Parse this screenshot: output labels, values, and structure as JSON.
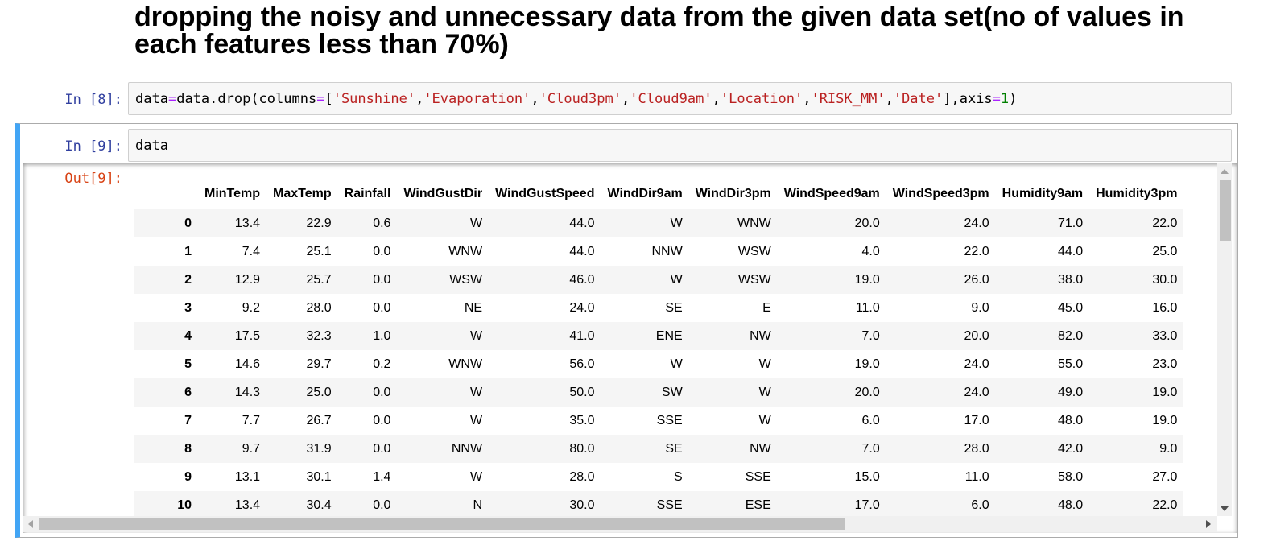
{
  "markdown": {
    "heading": "dropping the noisy and unnecessary data from the given data set(no of values in each features less than 70%)"
  },
  "cells": [
    {
      "prompt": "In [8]:",
      "code": [
        {
          "t": "data",
          "c": ""
        },
        {
          "t": "=",
          "c": "op"
        },
        {
          "t": "data.drop(columns",
          "c": ""
        },
        {
          "t": "=",
          "c": "op"
        },
        {
          "t": "[",
          "c": ""
        },
        {
          "t": "'Sunshine'",
          "c": "str"
        },
        {
          "t": ",",
          "c": ""
        },
        {
          "t": "'Evaporation'",
          "c": "str"
        },
        {
          "t": ",",
          "c": ""
        },
        {
          "t": "'Cloud3pm'",
          "c": "str"
        },
        {
          "t": ",",
          "c": ""
        },
        {
          "t": "'Cloud9am'",
          "c": "str"
        },
        {
          "t": ",",
          "c": ""
        },
        {
          "t": "'Location'",
          "c": "str"
        },
        {
          "t": ",",
          "c": ""
        },
        {
          "t": "'RISK_MM'",
          "c": "str"
        },
        {
          "t": ",",
          "c": ""
        },
        {
          "t": "'Date'",
          "c": "str"
        },
        {
          "t": "],axis",
          "c": ""
        },
        {
          "t": "=",
          "c": "op"
        },
        {
          "t": "1",
          "c": "num"
        },
        {
          "t": ")",
          "c": ""
        }
      ]
    },
    {
      "prompt": "In [9]:",
      "code_text": "data",
      "out_prompt": "Out[9]:"
    }
  ],
  "table": {
    "columns": [
      "MinTemp",
      "MaxTemp",
      "Rainfall",
      "WindGustDir",
      "WindGustSpeed",
      "WindDir9am",
      "WindDir3pm",
      "WindSpeed9am",
      "WindSpeed3pm",
      "Humidity9am",
      "Humidity3pm"
    ],
    "rows": [
      {
        "index": "0",
        "values": [
          "13.4",
          "22.9",
          "0.6",
          "W",
          "44.0",
          "W",
          "WNW",
          "20.0",
          "24.0",
          "71.0",
          "22.0"
        ]
      },
      {
        "index": "1",
        "values": [
          "7.4",
          "25.1",
          "0.0",
          "WNW",
          "44.0",
          "NNW",
          "WSW",
          "4.0",
          "22.0",
          "44.0",
          "25.0"
        ]
      },
      {
        "index": "2",
        "values": [
          "12.9",
          "25.7",
          "0.0",
          "WSW",
          "46.0",
          "W",
          "WSW",
          "19.0",
          "26.0",
          "38.0",
          "30.0"
        ]
      },
      {
        "index": "3",
        "values": [
          "9.2",
          "28.0",
          "0.0",
          "NE",
          "24.0",
          "SE",
          "E",
          "11.0",
          "9.0",
          "45.0",
          "16.0"
        ]
      },
      {
        "index": "4",
        "values": [
          "17.5",
          "32.3",
          "1.0",
          "W",
          "41.0",
          "ENE",
          "NW",
          "7.0",
          "20.0",
          "82.0",
          "33.0"
        ]
      },
      {
        "index": "5",
        "values": [
          "14.6",
          "29.7",
          "0.2",
          "WNW",
          "56.0",
          "W",
          "W",
          "19.0",
          "24.0",
          "55.0",
          "23.0"
        ]
      },
      {
        "index": "6",
        "values": [
          "14.3",
          "25.0",
          "0.0",
          "W",
          "50.0",
          "SW",
          "W",
          "20.0",
          "24.0",
          "49.0",
          "19.0"
        ]
      },
      {
        "index": "7",
        "values": [
          "7.7",
          "26.7",
          "0.0",
          "W",
          "35.0",
          "SSE",
          "W",
          "6.0",
          "17.0",
          "48.0",
          "19.0"
        ]
      },
      {
        "index": "8",
        "values": [
          "9.7",
          "31.9",
          "0.0",
          "NNW",
          "80.0",
          "SE",
          "NW",
          "7.0",
          "28.0",
          "42.0",
          "9.0"
        ]
      },
      {
        "index": "9",
        "values": [
          "13.1",
          "30.1",
          "1.4",
          "W",
          "28.0",
          "S",
          "SSE",
          "15.0",
          "11.0",
          "58.0",
          "27.0"
        ]
      },
      {
        "index": "10",
        "values": [
          "13.4",
          "30.4",
          "0.0",
          "N",
          "30.0",
          "SSE",
          "ESE",
          "17.0",
          "6.0",
          "48.0",
          "22.0"
        ]
      }
    ]
  },
  "colors": {
    "prompt_in": "#303f9f",
    "prompt_out": "#d84315",
    "selected_cell_border": "#42a5f5",
    "code_string": "#ba2121",
    "code_operator": "#aa22ff",
    "code_number": "#008000"
  }
}
